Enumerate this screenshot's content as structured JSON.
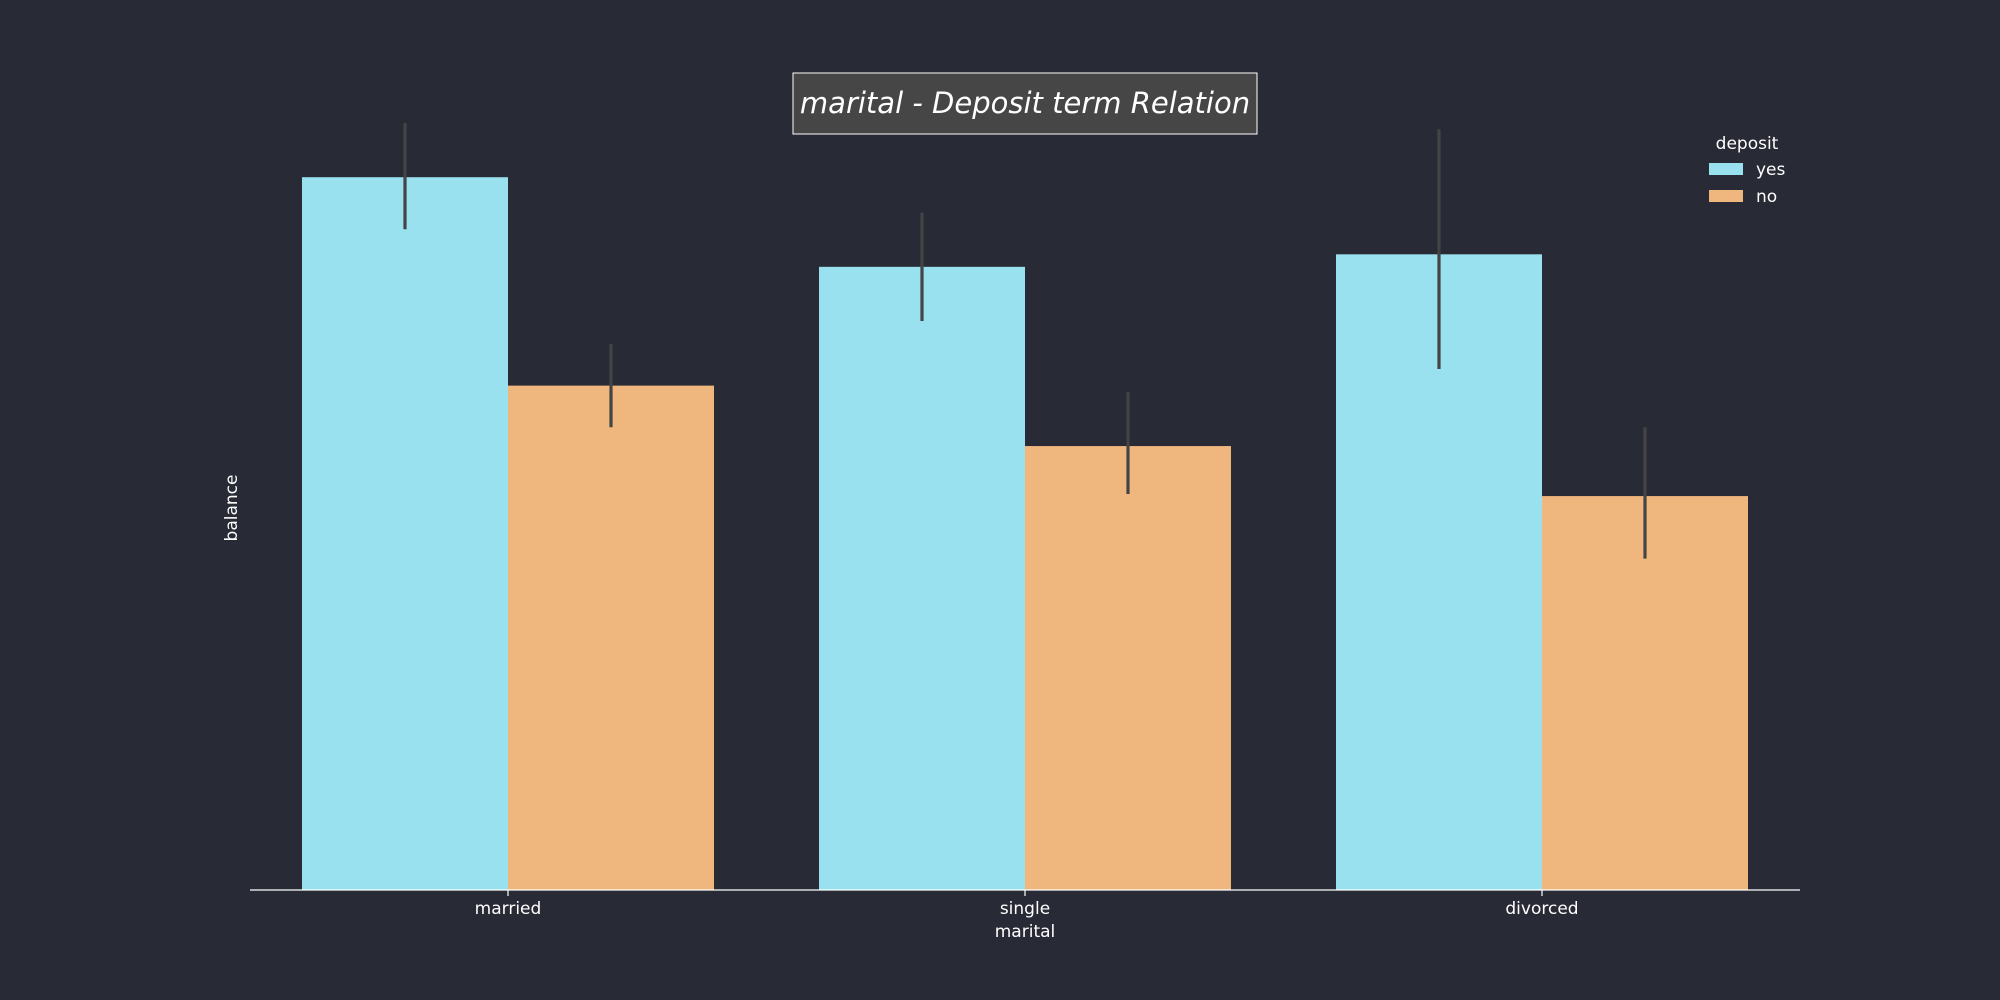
{
  "chart_data": {
    "type": "bar",
    "title": "marital - Deposit term Relation",
    "xlabel": "marital",
    "ylabel": "balance",
    "categories": [
      "married",
      "single",
      "divorced"
    ],
    "legend": {
      "title": "deposit",
      "position": "top-right"
    },
    "series": [
      {
        "name": "yes",
        "color": "#9ae1ef",
        "values": [
          1710,
          1495,
          1525
        ],
        "ci_low": [
          1585,
          1365,
          1250
        ],
        "ci_high": [
          1840,
          1625,
          1825
        ]
      },
      {
        "name": "no",
        "color": "#efb77e",
        "values": [
          1210,
          1065,
          945
        ],
        "ci_low": [
          1110,
          950,
          795
        ],
        "ci_high": [
          1310,
          1195,
          1110
        ]
      }
    ],
    "ylim": [
      0,
      1900
    ],
    "grid": false,
    "y_ticks_visible": false,
    "errorbar_color": "#444444",
    "background": "#282a35",
    "axis_color": "#ffffff"
  }
}
